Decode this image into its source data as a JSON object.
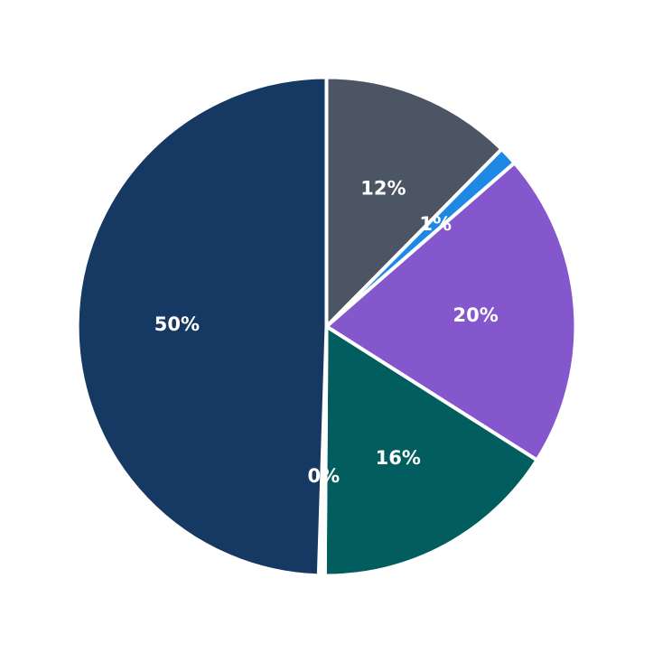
{
  "chart_data": {
    "type": "pie",
    "title": "",
    "start_angle_deg": 90,
    "direction": "clockwise",
    "legend": "none",
    "slices": [
      {
        "value": 12.4,
        "label": "12%",
        "color": "#4b5563"
      },
      {
        "value": 1.2,
        "label": "1%",
        "color": "#1e88e5"
      },
      {
        "value": 20.4,
        "label": "20%",
        "color": "#8557cd"
      },
      {
        "value": 16.1,
        "label": "16%",
        "color": "#025e5e"
      },
      {
        "value": 0.4,
        "label": "0%",
        "color": "#ffffff"
      },
      {
        "value": 49.5,
        "label": "50%",
        "color": "#153962"
      }
    ]
  }
}
